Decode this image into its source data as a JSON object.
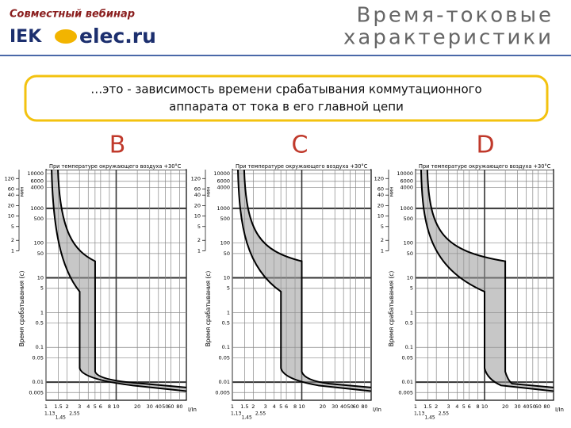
{
  "header": {
    "webinar": "Совместный вебинар",
    "logo_iek": "IEK",
    "logo_elec": "elec.ru",
    "title_line1": "Время-токовые",
    "title_line2": "характеристики"
  },
  "definition": {
    "line1": "…это - зависимость времени срабатывания коммутационного",
    "line2": "аппарата от тока в его главной цепи"
  },
  "panels": [
    {
      "letter": "B",
      "note": "При температуре окружающего воздуха +30°С",
      "y_axis_label": "Время срабатывания (с)",
      "minute_unit": "мин",
      "minute_ticks": [
        "120",
        "60",
        "40",
        "20",
        "10",
        "5",
        "2",
        "1"
      ],
      "second_ticks": [
        "10000",
        "6000",
        "4000",
        "1000",
        "500",
        "100",
        "50",
        "10",
        "5",
        "1",
        "0.5",
        "0.1",
        "0.05",
        "0.01",
        "0.005"
      ],
      "x_ticks": [
        "1",
        "1.5",
        "2",
        "3",
        "4",
        "5",
        "6",
        "8",
        "10",
        "20",
        "30",
        "40",
        "50",
        "60",
        "80"
      ],
      "x_unit": "I/In",
      "x_sub_ticks": [
        "1,13",
        "1,45",
        "2,55"
      ]
    },
    {
      "letter": "C",
      "note": "При температуре окружающего воздуха +30°С",
      "y_axis_label": "Время срабатывания (с)",
      "minute_unit": "мин",
      "minute_ticks": [
        "120",
        "60",
        "40",
        "20",
        "10",
        "5",
        "2",
        "1"
      ],
      "second_ticks": [
        "10000",
        "6000",
        "4000",
        "1000",
        "500",
        "100",
        "50",
        "10",
        "5",
        "1",
        "0.5",
        "0.1",
        "0.05",
        "0.01",
        "0.005"
      ],
      "x_ticks": [
        "1",
        "1.5",
        "2",
        "3",
        "4",
        "5",
        "6",
        "8",
        "10",
        "20",
        "30",
        "40",
        "50",
        "60",
        "80"
      ],
      "x_unit": "I/In",
      "x_sub_ticks": [
        "1,13",
        "1,45",
        "2,55"
      ]
    },
    {
      "letter": "D",
      "note": "При температуре окружающего воздуха +30°С",
      "y_axis_label": "Время срабатывания (с)",
      "minute_unit": "мин",
      "minute_ticks": [
        "120",
        "60",
        "40",
        "20",
        "10",
        "5",
        "2",
        "1"
      ],
      "second_ticks": [
        "10000",
        "6000",
        "4000",
        "1000",
        "500",
        "100",
        "50",
        "10",
        "5",
        "1",
        "0.5",
        "0.1",
        "0.05",
        "0.01",
        "0.005"
      ],
      "x_ticks": [
        "1",
        "1.5",
        "2",
        "3",
        "4",
        "5",
        "6",
        "8",
        "10",
        "20",
        "30",
        "40",
        "50",
        "60",
        "80"
      ],
      "x_unit": "I/In",
      "x_sub_ticks": [
        "1,13",
        "1,45",
        "2,55"
      ]
    }
  ]
}
